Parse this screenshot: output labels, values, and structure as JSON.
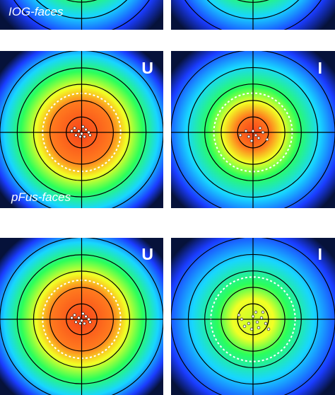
{
  "figure": {
    "rows": [
      {
        "region_label": "IOG-faces",
        "panels": [
          {
            "letter": ""
          },
          {
            "letter": ""
          }
        ]
      },
      {
        "region_label": "pFus-faces",
        "panels": [
          {
            "letter": "U"
          },
          {
            "letter": "I"
          }
        ]
      },
      {
        "region_label": "",
        "panels": [
          {
            "letter": "U"
          },
          {
            "letter": "I"
          }
        ]
      }
    ],
    "colors": {
      "map_outer": "#06123a",
      "map_blue": "#1a3cff",
      "map_cyan": "#18d6ff",
      "map_green": "#2bff5a",
      "map_yellow": "#f2ff25",
      "map_red": "#f7421a",
      "ring_line": "#000000",
      "dashed_ring": "#ffffff",
      "dot_fill": "#ffffff"
    }
  }
}
